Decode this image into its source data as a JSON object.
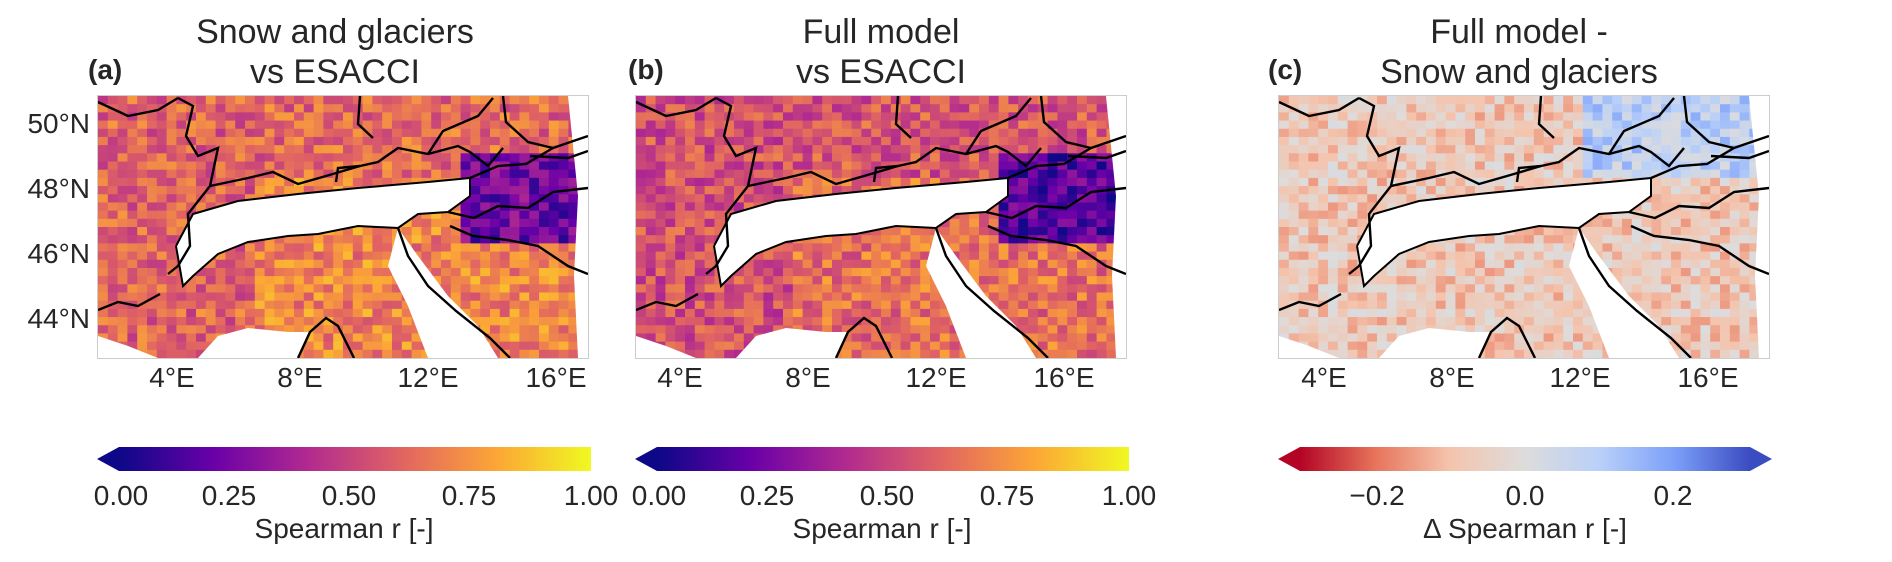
{
  "panels": [
    {
      "tag": "(a)",
      "title": "Snow and glaciers\nvs ESACCI",
      "colormap": "plasma",
      "show_lat_labels": true,
      "colorbar": {
        "ticks": [
          "0.00",
          "0.25",
          "0.50",
          "0.75",
          "1.00"
        ],
        "label": "Spearman r [-]",
        "extend": "min",
        "colors": [
          "#0d0887",
          "#6a00a8",
          "#b12a90",
          "#e16462",
          "#fca636",
          "#f0f921"
        ]
      }
    },
    {
      "tag": "(b)",
      "title": "Full model\nvs ESACCI",
      "colormap": "plasma",
      "show_lat_labels": false,
      "colorbar": {
        "ticks": [
          "0.00",
          "0.25",
          "0.50",
          "0.75",
          "1.00"
        ],
        "label": "Spearman r [-]",
        "extend": "min",
        "colors": [
          "#0d0887",
          "#6a00a8",
          "#b12a90",
          "#e16462",
          "#fca636",
          "#f0f921"
        ]
      }
    },
    {
      "tag": "(c)",
      "title": "Full model -\nSnow and glaciers",
      "colormap": "coolwarm_r",
      "show_lat_labels": false,
      "colorbar": {
        "ticks": [
          "−0.2",
          "0.0",
          "0.2"
        ],
        "label": "Δ Spearman r [-]",
        "extend": "both",
        "colors": [
          "#b40426",
          "#e7745b",
          "#f4c4ad",
          "#dddcdc",
          "#b9d0f9",
          "#7b9ff9",
          "#3b4cc0"
        ]
      }
    }
  ],
  "lat_labels": [
    "50°N",
    "48°N",
    "46°N",
    "44°N"
  ],
  "lon_labels": [
    "4°E",
    "8°E",
    "12°E",
    "16°E"
  ]
}
